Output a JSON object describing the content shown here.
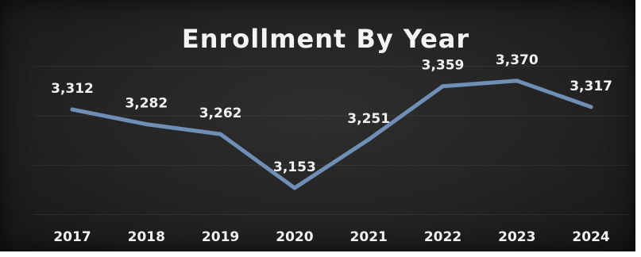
{
  "chart_data": {
    "type": "line",
    "title": "Enrollment By Year",
    "xlabel": "",
    "ylabel": "",
    "categories": [
      "2017",
      "2018",
      "2019",
      "2020",
      "2021",
      "2022",
      "2023",
      "2024"
    ],
    "values": [
      3312,
      3282,
      3262,
      3153,
      3251,
      3359,
      3370,
      3317
    ],
    "data_labels": [
      "3,312",
      "3,282",
      "3,262",
      "3,153",
      "3,251",
      "3,359",
      "3,370",
      "3,317"
    ],
    "ylim": [
      3100,
      3450
    ],
    "grid": true,
    "legend": "none",
    "line_color": "#6f8fb6"
  }
}
